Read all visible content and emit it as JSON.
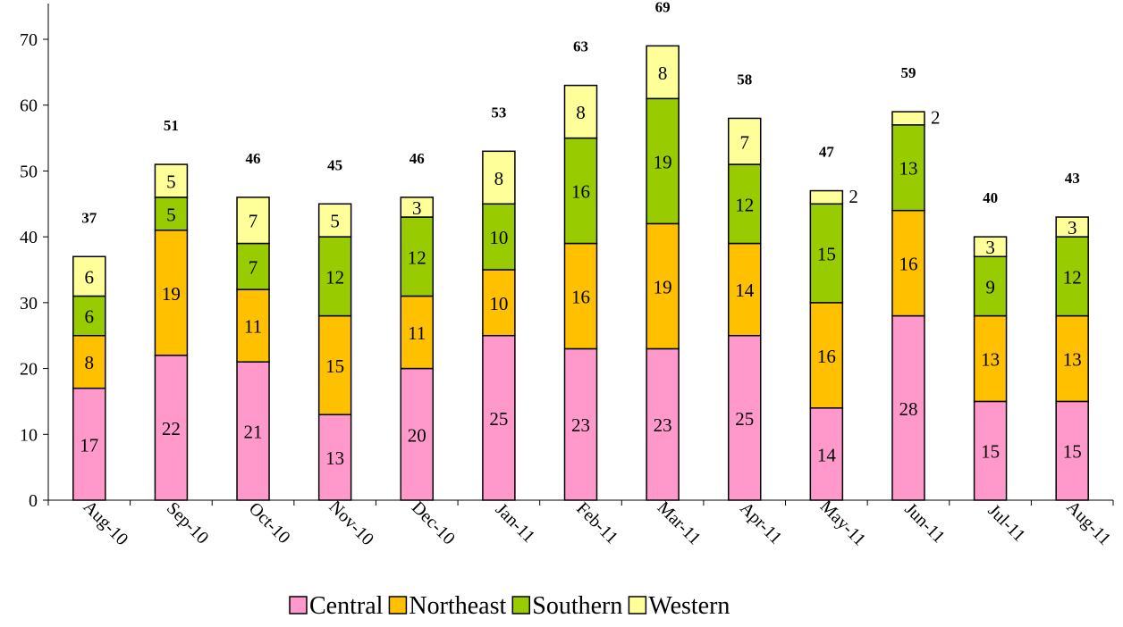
{
  "chart_data": {
    "type": "bar",
    "stacked": true,
    "categories": [
      "Aug-10",
      "Sep-10",
      "Oct-10",
      "Nov-10",
      "Dec-10",
      "Jan-11",
      "Feb-11",
      "Mar-11",
      "Apr-11",
      "May-11",
      "Jun-11",
      "Jul-11",
      "Aug-11"
    ],
    "series": [
      {
        "name": "Central",
        "color": "#FF99CC",
        "values": [
          17,
          22,
          21,
          13,
          20,
          25,
          23,
          23,
          25,
          14,
          28,
          15,
          15
        ]
      },
      {
        "name": "Northeast",
        "color": "#FFC000",
        "values": [
          8,
          19,
          11,
          15,
          11,
          10,
          16,
          19,
          14,
          16,
          16,
          13,
          13
        ]
      },
      {
        "name": "Southern",
        "color": "#99CC00",
        "values": [
          6,
          5,
          7,
          12,
          12,
          10,
          16,
          19,
          12,
          15,
          13,
          9,
          12
        ]
      },
      {
        "name": "Western",
        "color": "#FFFF99",
        "values": [
          6,
          5,
          7,
          5,
          3,
          8,
          8,
          8,
          7,
          2,
          2,
          3,
          3
        ]
      }
    ],
    "totals": [
      37,
      51,
      46,
      45,
      46,
      53,
      63,
      69,
      58,
      47,
      59,
      40,
      43
    ],
    "ylim": [
      0,
      70
    ],
    "yticks": [
      0,
      10,
      20,
      30,
      40,
      50,
      60,
      70
    ],
    "grid": false,
    "legend_position": "bottom",
    "title": "",
    "xlabel": "",
    "ylabel": ""
  }
}
